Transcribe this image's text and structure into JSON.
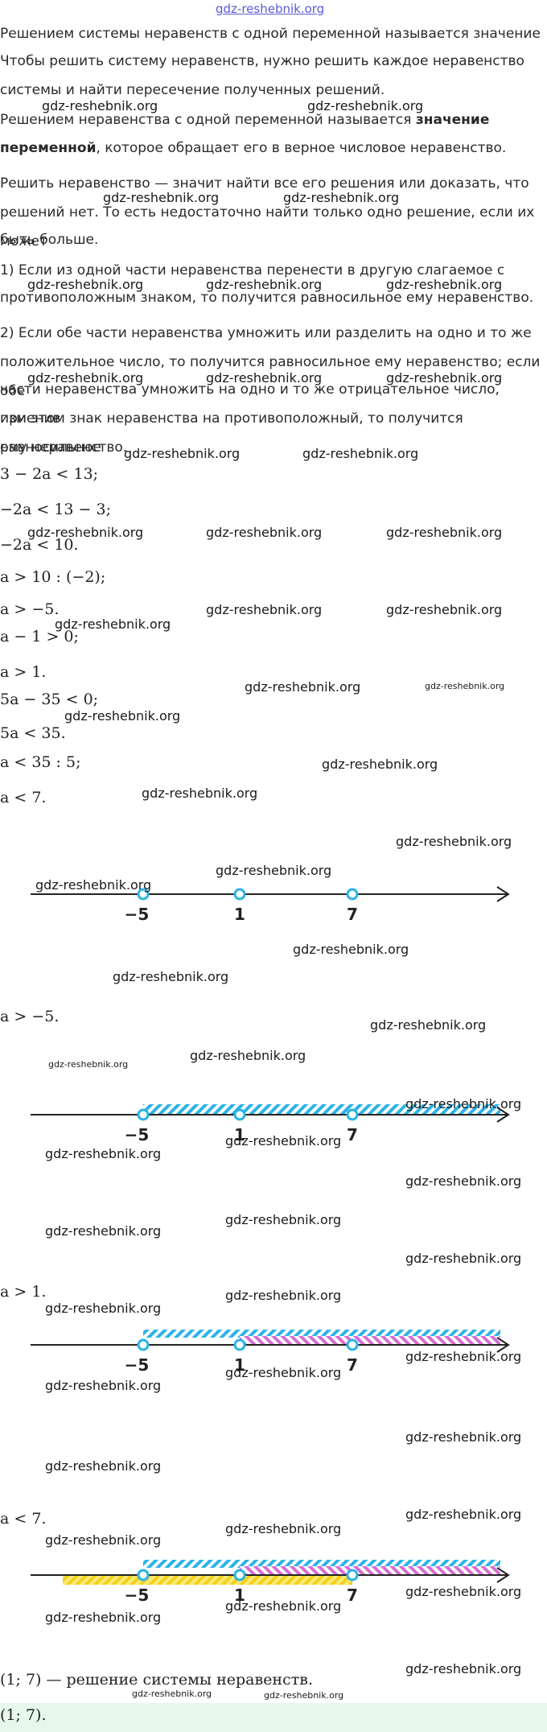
{
  "site_link": "gdz-reshebnik.org",
  "watermark": "gdz-reshebnik.org",
  "paragraphs": {
    "def_system": "Решением системы неравенств с одной переменной называется значение",
    "how_to_1": "Чтобы решить систему неравенств, нужно решить каждое неравенство",
    "how_to_2": "системы и найти пересечение полученных решений.",
    "def_ineq_a": "Решением неравенства с одной переменной называется ",
    "def_ineq_b": "значение",
    "def_ineq_c": "переменной",
    "def_ineq_d": ", которое обращает его в верное числовое неравенство.",
    "solve_1": "Решить неравенство — значит найти все его решения или доказать, что",
    "solve_2": "решений нет. То есть недостаточно найти только одно решение, если их может",
    "solve_3": "быть больше.",
    "rule1_1": "1) Если из одной части неравенства перенести в другую слагаемое с",
    "rule1_2": "противоположным знаком, то получится равносильное ему неравенство.",
    "rule2_1": "2) Если обе части неравенства умножить или разделить на одно и то же",
    "rule2_2": "положительное число, то получится равносильное ему неравенство; если обе",
    "rule2_3": "части неравенства умножить на одно и то же отрицательное число, изменив",
    "rule2_4": "при этом знак неравенства на противоположный, то получится равносильное",
    "rule2_5": "ему неравенство."
  },
  "math": {
    "l1": "3 − 2a < 13;",
    "l2": "−2a < 13 − 3;",
    "l3": "−2a < 10.",
    "l4": "a > 10 : (−2);",
    "l5": "a > −5.",
    "l6": "a − 1 > 0;",
    "l7": "a > 1.",
    "l8": "5a − 35 < 0;",
    "l9": "5a < 35.",
    "l10": "a < 35 : 5;",
    "l11": "a < 7.",
    "sol1": "a > −5.",
    "sol2": "a > 1.",
    "sol3": "a < 7.",
    "answer_text": "(1; 7) — решение системы неравенств.",
    "answer": "(1; 7)."
  },
  "number_line": {
    "labels": [
      "−5",
      "1",
      "7"
    ],
    "colors": {
      "blue": "#2bb3e6",
      "pink": "#d86bd2",
      "yellow": "#f2d11b",
      "axis": "#222222"
    }
  }
}
